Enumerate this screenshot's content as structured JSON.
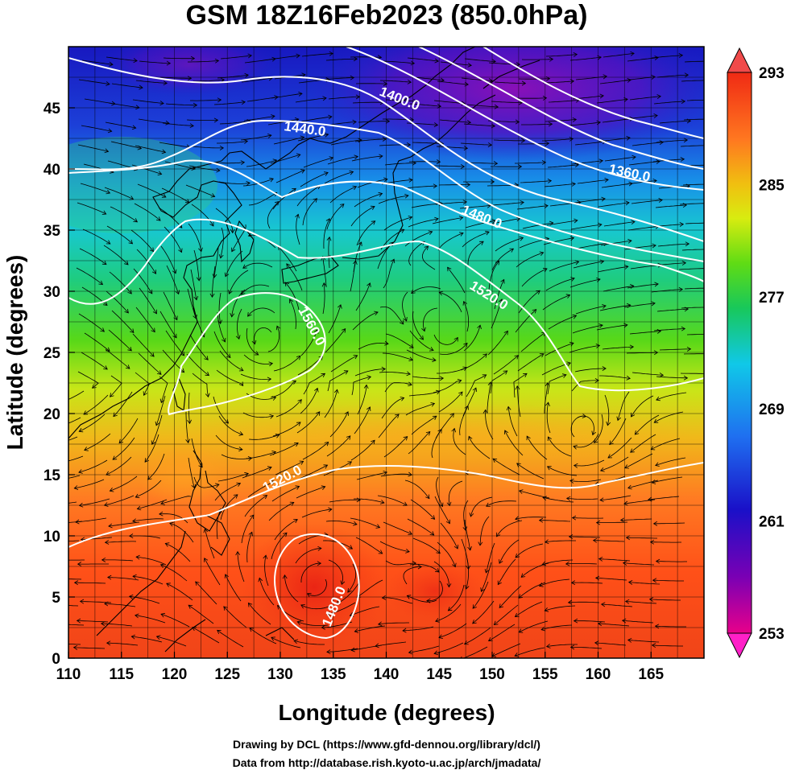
{
  "title": "GSM 18Z16Feb2023 (850.0hPa)",
  "x_axis": {
    "label": "Longitude (degrees)",
    "range": [
      110,
      170
    ],
    "ticks": [
      "110",
      "115",
      "120",
      "125",
      "130",
      "135",
      "140",
      "145",
      "150",
      "155",
      "160",
      "165"
    ]
  },
  "y_axis": {
    "label": "Latitude  (degrees)",
    "range": [
      0,
      50
    ],
    "ticks": [
      "0",
      "5",
      "10",
      "15",
      "20",
      "25",
      "30",
      "35",
      "40",
      "45"
    ]
  },
  "colorbar": {
    "range": [
      253,
      293
    ],
    "labels": [
      "293",
      "285",
      "277",
      "269",
      "261",
      "253"
    ],
    "colors": [
      "#e8008a",
      "#7a00b4",
      "#1a10c8",
      "#1f6ff0",
      "#10c8e8",
      "#18c85a",
      "#60dc14",
      "#d8ec10",
      "#f0c010",
      "#ff7820",
      "#f02a14"
    ]
  },
  "contours": [
    {
      "label": "1400.0"
    },
    {
      "label": "1440.0"
    },
    {
      "label": "1360.0"
    },
    {
      "label": "1480.0"
    },
    {
      "label": "1520.0"
    },
    {
      "label": "1560.0"
    },
    {
      "label": "1520.0"
    },
    {
      "label": "1480.0"
    }
  ],
  "credits": {
    "line1": "Drawing by DCL (https://www.gfd-dennou.org/library/dcl/)",
    "line2": "Data from http://database.rish.kyoto-u.ac.jp/arch/jmadata/"
  }
}
